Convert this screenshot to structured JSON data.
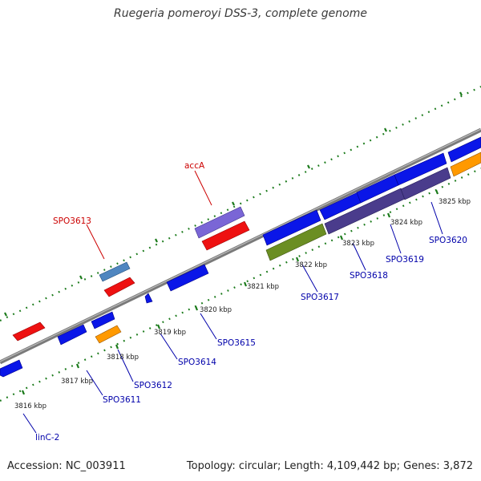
{
  "title": "Ruegeria pomeroyi DSS-3, complete genome",
  "footer": {
    "accession": "Accession: NC_003911",
    "topology": "Topology: circular; Length: 4,109,442 bp; Genes: 3,872"
  },
  "colors": {
    "backbone": "#8a8a8a",
    "ticks": "#1a7a1a",
    "gene_label_blue": "#0000aa",
    "gene_label_red": "#cc0000"
  },
  "scale_labels": [
    "3816 kbp",
    "3817 kbp",
    "3818 kbp",
    "3819 kbp",
    "3820 kbp",
    "3821 kbp",
    "3822 kbp",
    "3823 kbp",
    "3824 kbp",
    "3825 kbp"
  ],
  "gene_labels": [
    {
      "id": "linC-2",
      "text": "linC-2"
    },
    {
      "id": "SPO3611",
      "text": "SPO3611"
    },
    {
      "id": "SPO3612",
      "text": "SPO3612"
    },
    {
      "id": "SPO3614",
      "text": "SPO3614"
    },
    {
      "id": "SPO3615",
      "text": "SPO3615"
    },
    {
      "id": "SPO3617",
      "text": "SPO3617"
    },
    {
      "id": "SPO3618",
      "text": "SPO3618"
    },
    {
      "id": "SPO3619",
      "text": "SPO3619"
    },
    {
      "id": "SPO3620",
      "text": "SPO3620"
    },
    {
      "id": "SPO3613",
      "text": "SPO3613"
    },
    {
      "id": "accA",
      "text": "accA"
    }
  ]
}
